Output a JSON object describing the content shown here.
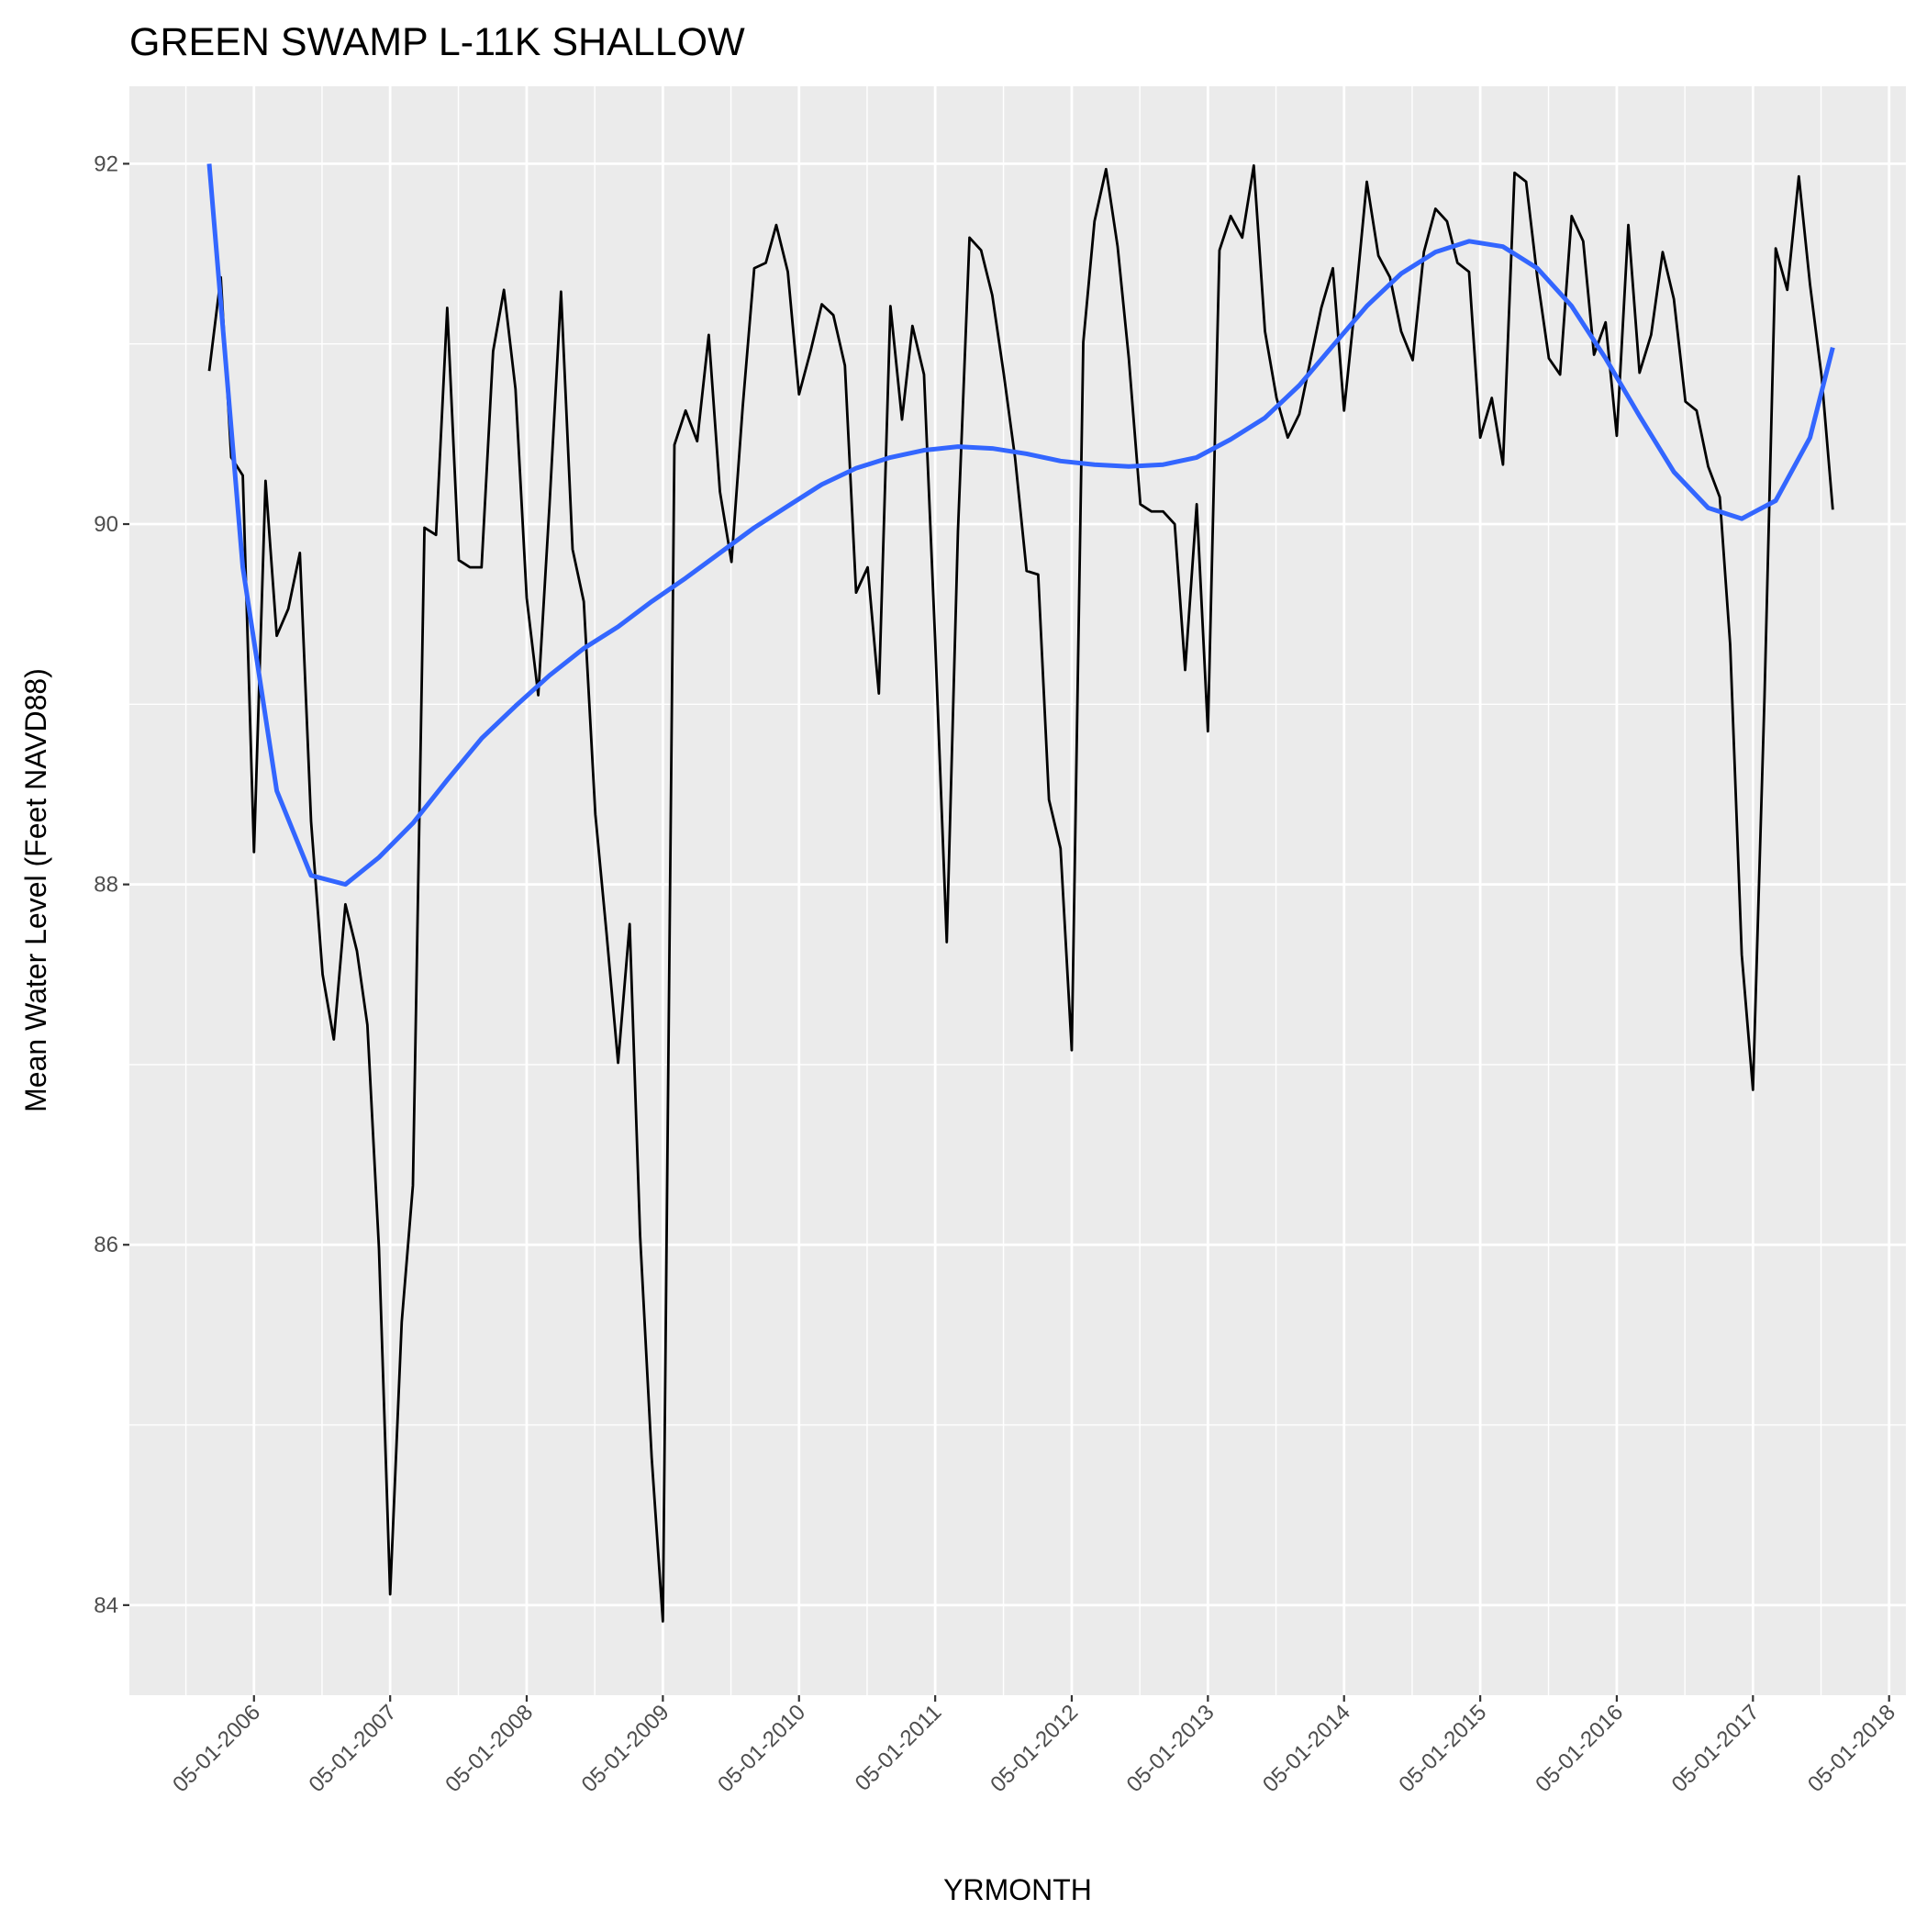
{
  "chart_data": {
    "type": "line",
    "title": "GREEN SWAMP L-11K SHALLOW",
    "x_label": "YRMONTH",
    "y_label": "Mean Water Level (Feet NAVD88)",
    "xlim": [
      "2005-06-01",
      "2018-06-15"
    ],
    "xticks": [
      {
        "value": "2006-05-01",
        "label": "05-01-2006"
      },
      {
        "value": "2007-05-01",
        "label": "05-01-2007"
      },
      {
        "value": "2008-05-01",
        "label": "05-01-2008"
      },
      {
        "value": "2009-05-01",
        "label": "05-01-2009"
      },
      {
        "value": "2010-05-01",
        "label": "05-01-2010"
      },
      {
        "value": "2011-05-01",
        "label": "05-01-2011"
      },
      {
        "value": "2012-05-01",
        "label": "05-01-2012"
      },
      {
        "value": "2013-05-01",
        "label": "05-01-2013"
      },
      {
        "value": "2014-05-01",
        "label": "05-01-2014"
      },
      {
        "value": "2015-05-01",
        "label": "05-01-2015"
      },
      {
        "value": "2016-05-01",
        "label": "05-01-2016"
      },
      {
        "value": "2017-05-01",
        "label": "05-01-2017"
      },
      {
        "value": "2018-05-01",
        "label": "05-01-2018"
      }
    ],
    "ylim": [
      83.5,
      92.43
    ],
    "yticks": [
      84,
      86,
      88,
      90,
      92
    ],
    "y_minor_ticks": [
      85,
      87,
      89,
      91
    ],
    "grid": true,
    "series": [
      {
        "color": "#000000",
        "x": [
          "2006-01-01",
          "2006-02-01",
          "2006-03-01",
          "2006-04-01",
          "2006-05-01",
          "2006-06-01",
          "2006-07-01",
          "2006-08-01",
          "2006-09-01",
          "2006-10-01",
          "2006-11-01",
          "2006-12-01",
          "2007-01-01",
          "2007-02-01",
          "2007-03-01",
          "2007-04-01",
          "2007-05-01",
          "2007-06-01",
          "2007-07-01",
          "2007-08-01",
          "2007-09-01",
          "2007-10-01",
          "2007-11-01",
          "2007-12-01",
          "2008-01-01",
          "2008-02-01",
          "2008-03-01",
          "2008-04-01",
          "2008-05-01",
          "2008-06-01",
          "2008-07-01",
          "2008-08-01",
          "2008-09-01",
          "2008-10-01",
          "2008-11-01",
          "2008-12-01",
          "2009-01-01",
          "2009-02-01",
          "2009-03-01",
          "2009-04-01",
          "2009-05-01",
          "2009-06-01",
          "2009-07-01",
          "2009-08-01",
          "2009-09-01",
          "2009-10-01",
          "2009-11-01",
          "2009-12-01",
          "2010-01-01",
          "2010-02-01",
          "2010-03-01",
          "2010-04-01",
          "2010-05-01",
          "2010-06-01",
          "2010-07-01",
          "2010-08-01",
          "2010-09-01",
          "2010-10-01",
          "2010-11-01",
          "2010-12-01",
          "2011-01-01",
          "2011-02-01",
          "2011-03-01",
          "2011-04-01",
          "2011-05-01",
          "2011-06-01",
          "2011-07-01",
          "2011-08-01",
          "2011-09-01",
          "2011-10-01",
          "2011-11-01",
          "2011-12-01",
          "2012-01-01",
          "2012-02-01",
          "2012-03-01",
          "2012-04-01",
          "2012-05-01",
          "2012-06-01",
          "2012-07-01",
          "2012-08-01",
          "2012-09-01",
          "2012-10-01",
          "2012-11-01",
          "2012-12-01",
          "2013-01-01",
          "2013-02-01",
          "2013-03-01",
          "2013-04-01",
          "2013-05-01",
          "2013-06-01",
          "2013-07-01",
          "2013-08-01",
          "2013-09-01",
          "2013-10-01",
          "2013-11-01",
          "2013-12-01",
          "2014-01-01",
          "2014-02-01",
          "2014-03-01",
          "2014-04-01",
          "2014-05-01",
          "2014-06-01",
          "2014-07-01",
          "2014-08-01",
          "2014-09-01",
          "2014-10-01",
          "2014-11-01",
          "2014-12-01",
          "2015-01-01",
          "2015-02-01",
          "2015-03-01",
          "2015-04-01",
          "2015-05-01",
          "2015-06-01",
          "2015-07-01",
          "2015-08-01",
          "2015-09-01",
          "2015-10-01",
          "2015-11-01",
          "2015-12-01",
          "2016-01-01",
          "2016-02-01",
          "2016-03-01",
          "2016-04-01",
          "2016-05-01",
          "2016-06-01",
          "2016-07-01",
          "2016-08-01",
          "2016-09-01",
          "2016-10-01",
          "2016-11-01",
          "2016-12-01",
          "2017-01-01",
          "2017-02-01",
          "2017-03-01",
          "2017-04-01",
          "2017-05-01",
          "2017-06-01",
          "2017-07-01",
          "2017-08-01",
          "2017-09-01",
          "2017-10-01",
          "2017-11-01",
          "2017-12-01"
        ],
        "values": [
          90.85,
          91.37,
          90.37,
          90.27,
          88.18,
          90.24,
          89.38,
          89.53,
          89.84,
          88.35,
          87.5,
          87.14,
          87.89,
          87.63,
          87.22,
          85.98,
          84.06,
          85.57,
          86.33,
          89.98,
          89.94,
          91.2,
          89.8,
          89.76,
          89.76,
          90.96,
          91.3,
          90.75,
          89.59,
          89.05,
          90.1,
          91.29,
          89.86,
          89.57,
          88.39,
          87.73,
          87.01,
          87.78,
          86.05,
          84.82,
          83.91,
          90.44,
          90.63,
          90.46,
          91.05,
          90.18,
          89.79,
          90.65,
          91.42,
          91.45,
          91.66,
          91.4,
          90.72,
          90.96,
          91.22,
          91.16,
          90.88,
          89.62,
          89.76,
          89.06,
          91.21,
          90.58,
          91.1,
          90.83,
          89.35,
          87.68,
          89.96,
          91.59,
          91.52,
          91.27,
          90.83,
          90.37,
          89.74,
          89.72,
          88.47,
          88.2,
          87.08,
          91.01,
          91.68,
          91.97,
          91.54,
          90.92,
          90.11,
          90.07,
          90.07,
          90.0,
          89.19,
          90.11,
          88.85,
          91.52,
          91.71,
          91.59,
          91.99,
          91.07,
          90.7,
          90.48,
          90.61,
          90.92,
          91.2,
          91.42,
          90.63,
          91.25,
          91.9,
          91.49,
          91.37,
          91.07,
          90.91,
          91.51,
          91.75,
          91.68,
          91.45,
          91.4,
          90.48,
          90.7,
          90.33,
          91.95,
          91.9,
          91.37,
          90.92,
          90.83,
          91.71,
          91.57,
          90.94,
          91.12,
          90.49,
          91.66,
          90.84,
          91.05,
          91.51,
          91.25,
          90.68,
          90.63,
          90.32,
          90.15,
          89.33,
          87.61,
          86.86,
          89.04,
          91.53,
          91.3,
          91.93,
          91.33,
          90.82,
          90.08
        ]
      },
      {
        "color": "#3366ff",
        "x": [
          "2006-01-01",
          "2006-04-01",
          "2006-07-01",
          "2006-10-01",
          "2007-01-01",
          "2007-04-01",
          "2007-07-01",
          "2007-10-01",
          "2008-01-01",
          "2008-04-01",
          "2008-07-01",
          "2008-10-01",
          "2009-01-01",
          "2009-04-01",
          "2009-07-01",
          "2009-10-01",
          "2010-01-01",
          "2010-04-01",
          "2010-07-01",
          "2010-10-01",
          "2011-01-01",
          "2011-04-01",
          "2011-07-01",
          "2011-10-01",
          "2012-01-01",
          "2012-04-01",
          "2012-07-01",
          "2012-10-01",
          "2013-01-01",
          "2013-04-01",
          "2013-07-01",
          "2013-10-01",
          "2014-01-01",
          "2014-04-01",
          "2014-07-01",
          "2014-10-01",
          "2015-01-01",
          "2015-04-01",
          "2015-07-01",
          "2015-10-01",
          "2016-01-01",
          "2016-04-01",
          "2016-07-01",
          "2016-10-01",
          "2017-01-01",
          "2017-04-01",
          "2017-07-01",
          "2017-10-01",
          "2017-12-01"
        ],
        "values": [
          92.0,
          89.76,
          88.52,
          88.05,
          88.0,
          88.15,
          88.34,
          88.58,
          88.81,
          88.99,
          89.16,
          89.31,
          89.43,
          89.57,
          89.7,
          89.84,
          89.98,
          90.1,
          90.22,
          90.31,
          90.37,
          90.41,
          90.43,
          90.42,
          90.39,
          90.35,
          90.33,
          90.32,
          90.33,
          90.37,
          90.47,
          90.59,
          90.77,
          90.99,
          91.21,
          91.39,
          91.51,
          91.57,
          91.54,
          91.42,
          91.21,
          90.92,
          90.6,
          90.29,
          90.09,
          90.03,
          90.13,
          90.48,
          90.98
        ]
      }
    ]
  }
}
